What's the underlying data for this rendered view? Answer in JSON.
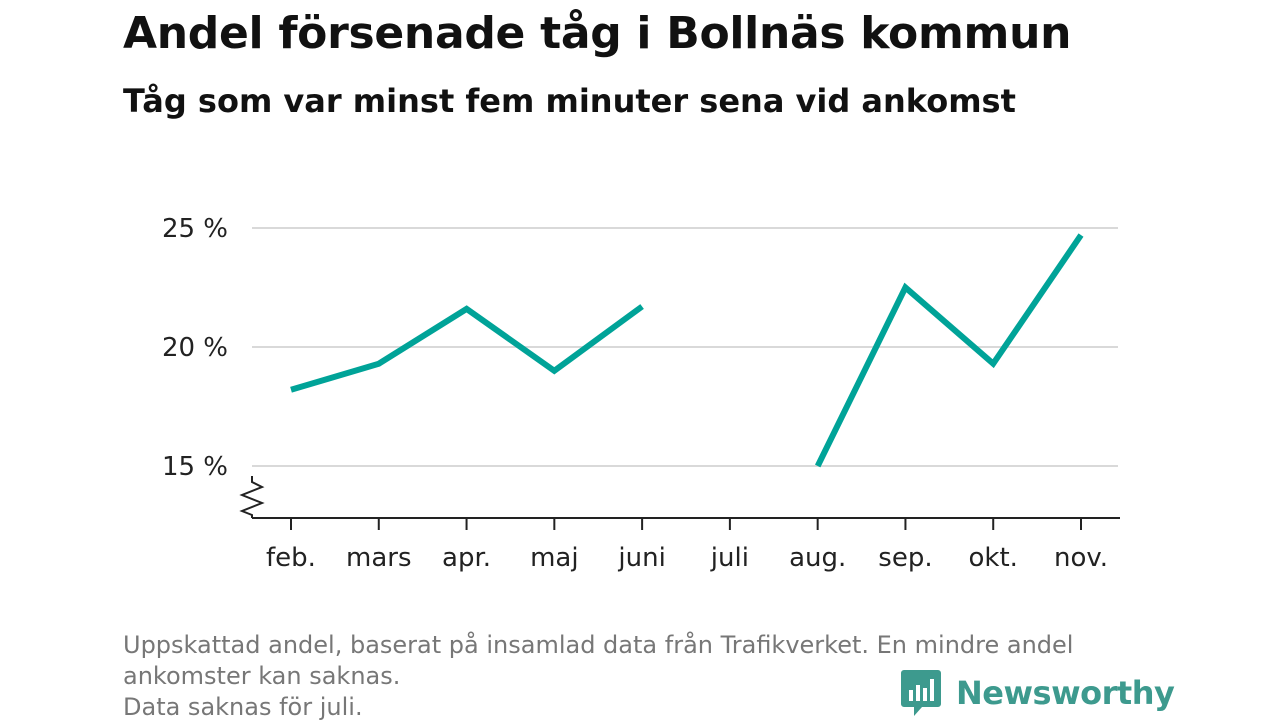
{
  "header": {
    "title": "Andel försenade tåg i Bollnäs kommun",
    "subtitle": "Tåg som var minst fem minuter sena vid ankomst"
  },
  "chart_data": {
    "type": "line",
    "title": "Andel försenade tåg i Bollnäs kommun",
    "subtitle": "Tåg som var minst fem minuter sena vid ankomst",
    "xlabel": "",
    "ylabel": "",
    "categories": [
      "feb.",
      "mars",
      "apr.",
      "maj",
      "juni",
      "juli",
      "aug.",
      "sep.",
      "okt.",
      "nov."
    ],
    "series": [
      {
        "color": "#00a398",
        "values": [
          18.2,
          19.3,
          21.6,
          19.0,
          21.7,
          null,
          15.0,
          22.5,
          19.3,
          24.7
        ]
      }
    ],
    "y_ticks": [
      15,
      20,
      25
    ],
    "y_tick_labels": [
      "15 %",
      "20 %",
      "25 %"
    ],
    "ylim": [
      12.8,
      25.2
    ],
    "y_axis_break": true,
    "grid": true,
    "legend": "none"
  },
  "footer": {
    "note_lines": [
      "Uppskattad andel, baserat på insamlad data från Trafikverket. En mindre andel",
      "ankomster kan saknas.",
      "Data saknas för juli."
    ],
    "brand": "Newsworthy"
  },
  "colors": {
    "line": "#00a398",
    "grid": "#d9d9d9",
    "axis": "#222222",
    "brand": "#3d9a8e",
    "footnote": "#777777"
  },
  "icons": [
    "newsworthy-logo-icon",
    "axis-break-icon"
  ]
}
